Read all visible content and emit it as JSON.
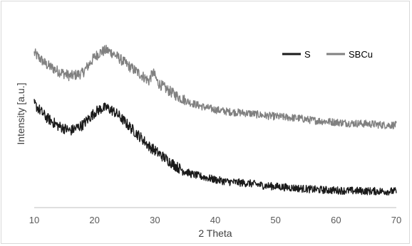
{
  "chart_data": {
    "type": "line",
    "title": "",
    "xlabel": "2 Theta",
    "ylabel": "Intensity [a.u.]",
    "xlim": [
      10,
      70
    ],
    "ylim": [
      0,
      10
    ],
    "x_ticks": [
      "10",
      "20",
      "30",
      "40",
      "50",
      "60",
      "70"
    ],
    "y_ticks_shown": false,
    "grid": false,
    "legend_position": "top-right",
    "x": [
      10,
      12,
      14,
      16,
      18,
      20,
      21,
      22,
      23,
      24,
      26,
      28,
      29,
      29.7,
      30.5,
      32,
      34,
      36,
      38,
      40,
      42,
      44,
      46,
      48,
      50,
      52,
      54,
      56,
      58,
      60,
      62,
      64,
      66,
      68,
      70
    ],
    "series": [
      {
        "name": "S",
        "color": "#1a1a1a",
        "values": [
          5.4,
          4.7,
          4.25,
          4.0,
          4.3,
          4.95,
          5.15,
          5.2,
          5.05,
          4.8,
          4.15,
          3.55,
          3.2,
          3.05,
          2.85,
          2.5,
          2.05,
          1.75,
          1.6,
          1.45,
          1.35,
          1.3,
          1.25,
          1.15,
          1.1,
          1.05,
          1.0,
          0.95,
          0.92,
          0.9,
          0.88,
          0.87,
          0.86,
          0.85,
          0.85
        ]
      },
      {
        "name": "SBCu",
        "color": "#808080",
        "values": [
          8.05,
          7.45,
          7.1,
          6.85,
          7.0,
          7.85,
          8.1,
          8.2,
          8.05,
          7.8,
          7.3,
          6.85,
          6.6,
          7.05,
          6.5,
          6.15,
          5.75,
          5.45,
          5.25,
          5.1,
          5.0,
          4.95,
          4.9,
          4.8,
          4.75,
          4.7,
          4.65,
          4.55,
          4.5,
          4.45,
          4.4,
          4.38,
          4.35,
          4.3,
          4.3
        ]
      }
    ]
  }
}
